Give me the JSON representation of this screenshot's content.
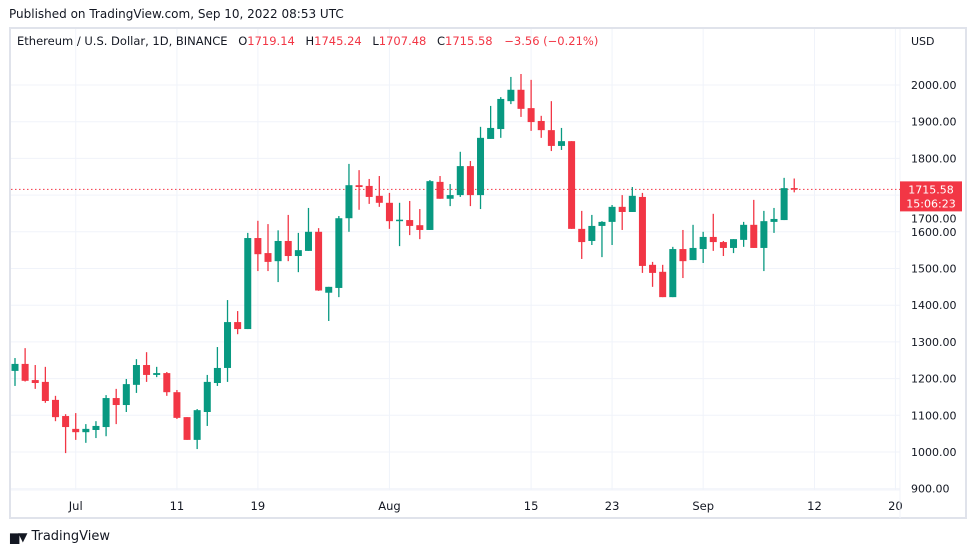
{
  "header": {
    "published": "Published on TradingView.com, Sep 10, 2022 08:53 UTC"
  },
  "legend": {
    "symbol": "Ethereum / U.S. Dollar, 1D, BINANCE",
    "open_label": "O",
    "open": "1719.14",
    "high_label": "H",
    "high": "1745.24",
    "low_label": "L",
    "low": "1707.48",
    "close_label": "C",
    "close": "1715.58",
    "change": "−3.56 (−0.21%)"
  },
  "price_axis": {
    "currency": "USD"
  },
  "last_price": {
    "price": "1715.58",
    "countdown": "15:06:23"
  },
  "footer": {
    "brand": "TradingView"
  },
  "colors": {
    "up": "#089981",
    "down": "#f23645",
    "grid": "#f0f3fa",
    "text": "#131722"
  },
  "chart_data": {
    "type": "candlestick",
    "title": "Ethereum / U.S. Dollar, 1D, BINANCE",
    "ylabel": "USD",
    "ylim": [
      880,
      2160
    ],
    "y_ticks": [
      "900.00",
      "1000.00",
      "1100.00",
      "1200.00",
      "1300.00",
      "1400.00",
      "1500.00",
      "1600.00",
      "1700.00",
      "1800.00",
      "1900.00",
      "2000.00"
    ],
    "x_ticks": [
      {
        "label": "Jul",
        "index": 6
      },
      {
        "label": "11",
        "index": 16
      },
      {
        "label": "19",
        "index": 24
      },
      {
        "label": "Aug",
        "index": 37
      },
      {
        "label": "15",
        "index": 51
      },
      {
        "label": "23",
        "index": 59
      },
      {
        "label": "Sep",
        "index": 68
      },
      {
        "label": "12",
        "index": 79
      },
      {
        "label": "20",
        "index": 87
      }
    ],
    "first_date": "2022-06-25",
    "columns": [
      "open",
      "high",
      "low",
      "close"
    ],
    "candles": [
      [
        1221,
        1256,
        1180,
        1240
      ],
      [
        1240,
        1283,
        1192,
        1194
      ],
      [
        1196,
        1237,
        1172,
        1188
      ],
      [
        1191,
        1232,
        1134,
        1139
      ],
      [
        1142,
        1153,
        1084,
        1095
      ],
      [
        1098,
        1103,
        997,
        1068
      ],
      [
        1063,
        1106,
        1033,
        1054
      ],
      [
        1054,
        1076,
        1025,
        1063
      ],
      [
        1060,
        1084,
        1038,
        1071
      ],
      [
        1068,
        1155,
        1043,
        1147
      ],
      [
        1147,
        1172,
        1076,
        1128
      ],
      [
        1128,
        1199,
        1109,
        1185
      ],
      [
        1183,
        1253,
        1161,
        1237
      ],
      [
        1237,
        1272,
        1191,
        1210
      ],
      [
        1210,
        1232,
        1204,
        1215
      ],
      [
        1215,
        1218,
        1153,
        1163
      ],
      [
        1163,
        1169,
        1090,
        1093
      ],
      [
        1095,
        1095,
        1033,
        1033
      ],
      [
        1033,
        1117,
        1008,
        1114
      ],
      [
        1109,
        1210,
        1071,
        1191
      ],
      [
        1188,
        1286,
        1180,
        1229
      ],
      [
        1229,
        1414,
        1191,
        1354
      ],
      [
        1354,
        1384,
        1321,
        1335
      ],
      [
        1335,
        1597,
        1335,
        1583
      ],
      [
        1583,
        1630,
        1493,
        1539
      ],
      [
        1542,
        1621,
        1493,
        1518
      ],
      [
        1520,
        1604,
        1463,
        1575
      ],
      [
        1575,
        1646,
        1520,
        1534
      ],
      [
        1534,
        1597,
        1490,
        1550
      ],
      [
        1548,
        1665,
        1548,
        1600
      ],
      [
        1600,
        1610,
        1439,
        1440
      ],
      [
        1434,
        1450,
        1357,
        1450
      ],
      [
        1447,
        1643,
        1422,
        1637
      ],
      [
        1637,
        1785,
        1600,
        1727
      ],
      [
        1727,
        1768,
        1660,
        1722
      ],
      [
        1725,
        1744,
        1676,
        1695
      ],
      [
        1698,
        1752,
        1668,
        1679
      ],
      [
        1679,
        1706,
        1608,
        1629
      ],
      [
        1629,
        1679,
        1561,
        1633
      ],
      [
        1632,
        1684,
        1591,
        1616
      ],
      [
        1618,
        1662,
        1580,
        1605
      ],
      [
        1605,
        1741,
        1605,
        1738
      ],
      [
        1736,
        1752,
        1690,
        1690
      ],
      [
        1690,
        1730,
        1670,
        1700
      ],
      [
        1700,
        1818,
        1695,
        1779
      ],
      [
        1779,
        1793,
        1670,
        1700
      ],
      [
        1700,
        1886,
        1662,
        1856
      ],
      [
        1853,
        1943,
        1853,
        1883
      ],
      [
        1880,
        1967,
        1856,
        1962
      ],
      [
        1956,
        2022,
        1948,
        1987
      ],
      [
        1987,
        2030,
        1913,
        1935
      ],
      [
        1937,
        2014,
        1875,
        1899
      ],
      [
        1902,
        1916,
        1856,
        1877
      ],
      [
        1877,
        1956,
        1820,
        1834
      ],
      [
        1834,
        1883,
        1823,
        1847
      ],
      [
        1847,
        1847,
        1608,
        1608
      ],
      [
        1608,
        1657,
        1526,
        1572
      ],
      [
        1575,
        1646,
        1564,
        1616
      ],
      [
        1616,
        1629,
        1531,
        1627
      ],
      [
        1627,
        1673,
        1564,
        1668
      ],
      [
        1668,
        1700,
        1605,
        1654
      ],
      [
        1654,
        1722,
        1654,
        1698
      ],
      [
        1695,
        1706,
        1488,
        1507
      ],
      [
        1510,
        1518,
        1450,
        1488
      ],
      [
        1491,
        1510,
        1422,
        1422
      ],
      [
        1422,
        1559,
        1422,
        1553
      ],
      [
        1553,
        1605,
        1474,
        1520
      ],
      [
        1523,
        1619,
        1523,
        1556
      ],
      [
        1553,
        1600,
        1515,
        1586
      ],
      [
        1586,
        1649,
        1548,
        1572
      ],
      [
        1572,
        1575,
        1534,
        1556
      ],
      [
        1556,
        1580,
        1542,
        1580
      ],
      [
        1578,
        1627,
        1559,
        1619
      ],
      [
        1619,
        1687,
        1556,
        1556
      ],
      [
        1556,
        1657,
        1493,
        1629
      ],
      [
        1627,
        1665,
        1597,
        1635
      ],
      [
        1632,
        1747,
        1632,
        1719
      ],
      [
        1719.14,
        1745.24,
        1707.48,
        1715.58
      ]
    ],
    "last_price": 1715.58
  }
}
